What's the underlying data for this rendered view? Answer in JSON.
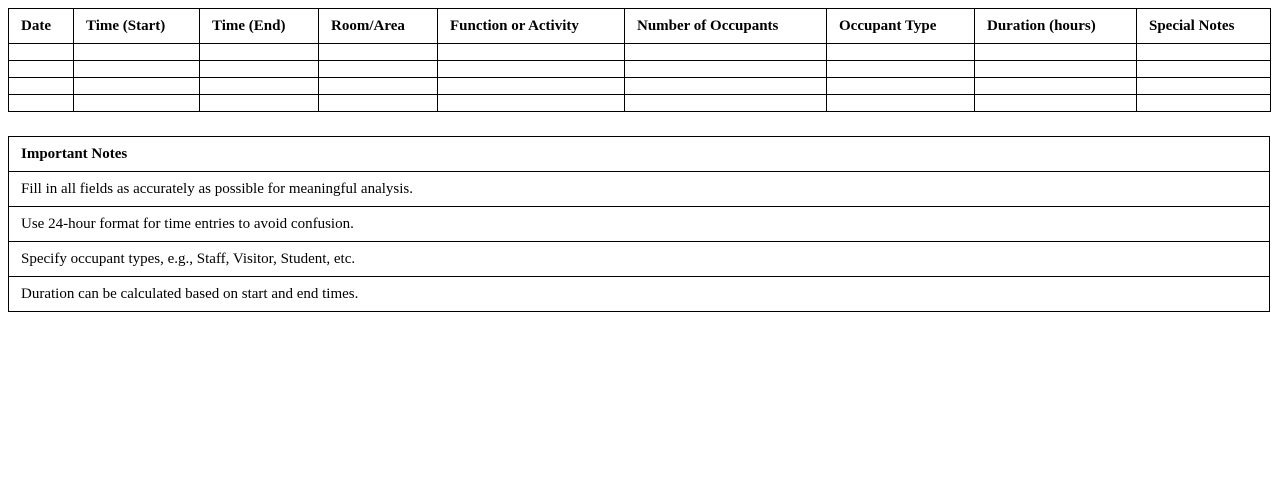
{
  "log_table": {
    "headers": [
      "Date",
      "Time (Start)",
      "Time (End)",
      "Room/Area",
      "Function or Activity",
      "Number of Occupants",
      "Occupant Type",
      "Duration (hours)",
      "Special Notes"
    ],
    "rows": [
      [
        "",
        "",
        "",
        "",
        "",
        "",
        "",
        "",
        ""
      ],
      [
        "",
        "",
        "",
        "",
        "",
        "",
        "",
        "",
        ""
      ],
      [
        "",
        "",
        "",
        "",
        "",
        "",
        "",
        "",
        ""
      ],
      [
        "",
        "",
        "",
        "",
        "",
        "",
        "",
        "",
        ""
      ]
    ]
  },
  "notes_table": {
    "title": "Important Notes",
    "items": [
      "Fill in all fields as accurately as possible for meaningful analysis.",
      "Use 24-hour format for time entries to avoid confusion.",
      "Specify occupant types, e.g., Staff, Visitor, Student, etc.",
      "Duration can be calculated based on start and end times."
    ]
  }
}
